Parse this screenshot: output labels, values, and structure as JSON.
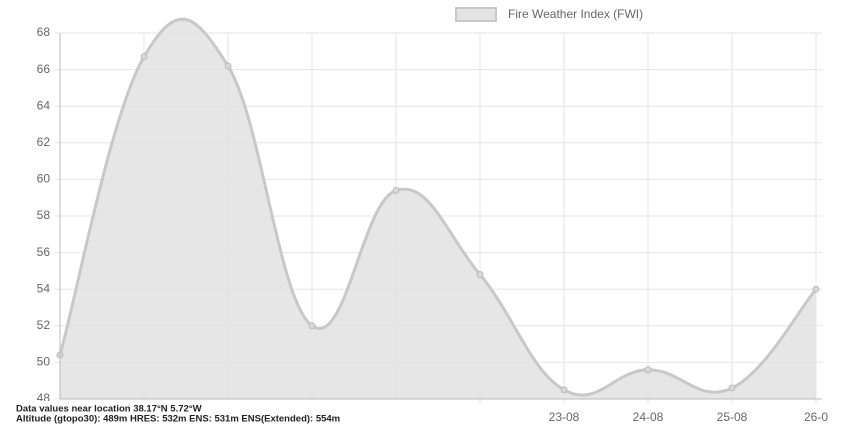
{
  "chart_data": {
    "type": "line",
    "series": [
      {
        "name": "Fire Weather Index (FWI)",
        "color": "#c8c8c8",
        "fill": "#e3e3e3",
        "values": [
          50.4,
          66.7,
          66.2,
          52.0,
          59.4,
          54.8,
          48.5,
          49.6,
          48.6,
          54.0
        ]
      }
    ],
    "categories": [
      null,
      null,
      null,
      null,
      null,
      null,
      "23-08",
      "24-08",
      "25-08",
      "26-0"
    ],
    "ylim": [
      48,
      68
    ],
    "yticks": [
      48,
      50,
      52,
      54,
      56,
      58,
      60,
      62,
      64,
      66,
      68
    ],
    "grid": true,
    "legend": "top"
  },
  "overlay": {
    "line1": "Data values near location 38.17°N 5.72°W",
    "line2": "Altitude (gtopo30): 489m HRES: 532m ENS: 531m ENS(Extended): 554m"
  }
}
